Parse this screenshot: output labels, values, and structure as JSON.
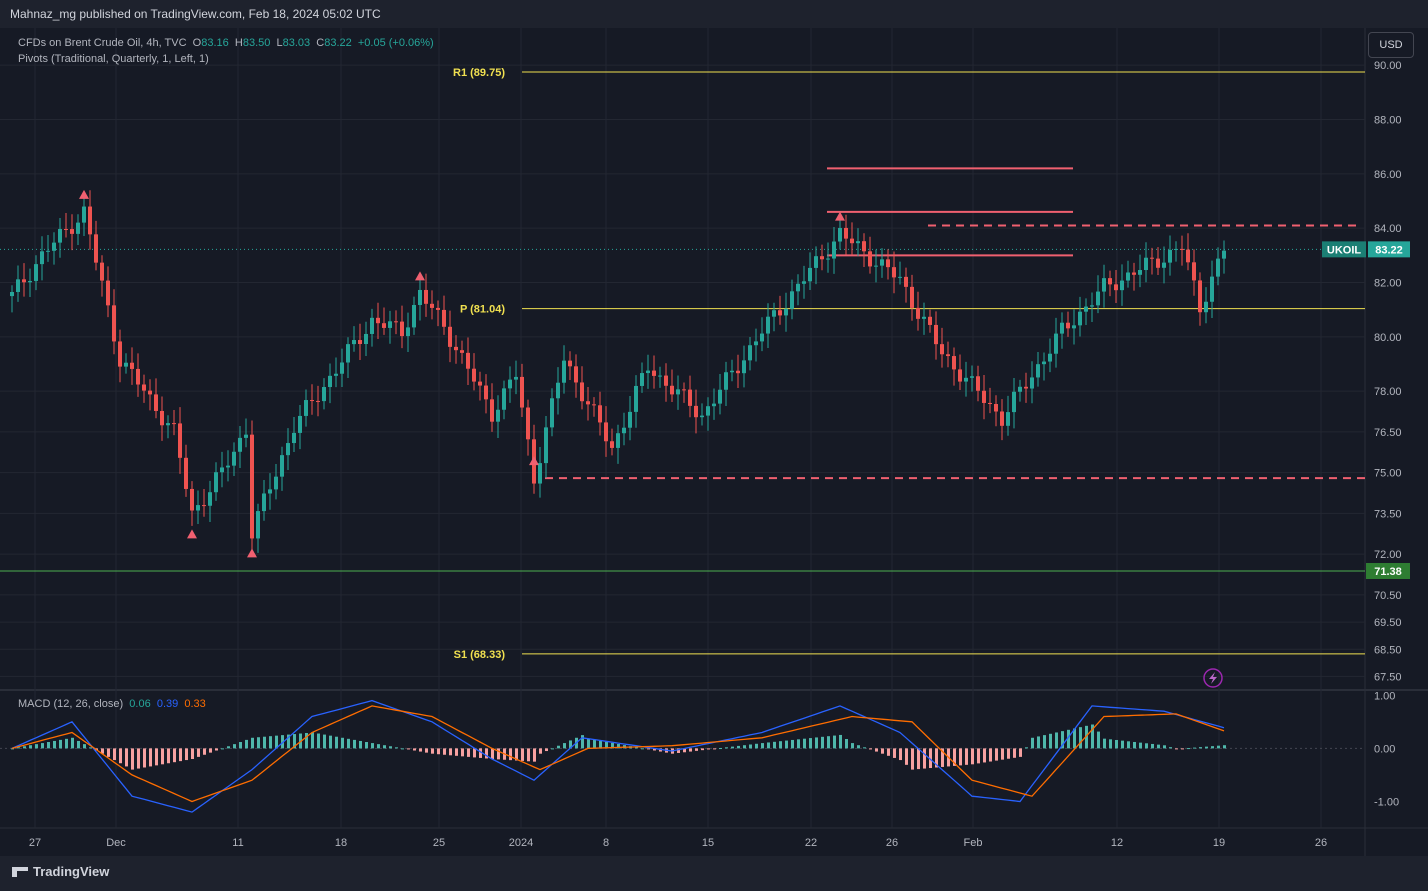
{
  "header": {
    "published": "Mahnaz_mg published on TradingView.com, Feb 18, 2024 05:02 UTC"
  },
  "legend": {
    "symbol": "CFDs on Brent Crude Oil, 4h, TVC",
    "o_label": "O",
    "o": "83.16",
    "h_label": "H",
    "h": "83.50",
    "l_label": "L",
    "l": "83.03",
    "c_label": "C",
    "c": "83.22",
    "change": "+0.05 (+0.06%)",
    "pivots": "Pivots (Traditional, Quarterly, 1, Left, 1)"
  },
  "currency_button": "USD",
  "macd_legend": {
    "name": "MACD (12, 26, close)",
    "v1": "0.06",
    "v2": "0.39",
    "v3": "0.33"
  },
  "footer": {
    "brand": "TradingView"
  },
  "colors": {
    "up": "#26a69a",
    "down": "#ef5350",
    "pivot": "#f0e050",
    "annotation": "#f06070",
    "support_line": "#4caf50"
  },
  "chart_data": {
    "type": "candlestick",
    "interval": "4h",
    "y_range": [
      67,
      91
    ],
    "y_ticks": [
      "67.50",
      "68.50",
      "69.50",
      "70.50",
      "72.00",
      "73.50",
      "75.00",
      "76.50",
      "78.00",
      "80.00",
      "82.00",
      "84.00",
      "86.00",
      "88.00",
      "90.00"
    ],
    "x_ticks": [
      "27",
      "Dec",
      "11",
      "18",
      "25",
      "2024",
      "8",
      "15",
      "22",
      "26",
      "Feb",
      "12",
      "19",
      "26"
    ],
    "last_price": {
      "label": "UKOIL",
      "value": "83.22"
    },
    "support_label": {
      "value": "71.38"
    },
    "pivots": [
      {
        "label": "R1 (89.75)",
        "value": 89.75
      },
      {
        "label": "P (81.04)",
        "value": 81.04
      },
      {
        "label": "S1 (68.33)",
        "value": 68.33
      }
    ],
    "horizontal_lines": [
      {
        "style": "solid",
        "value": 86.2
      },
      {
        "style": "solid",
        "value": 84.6
      },
      {
        "style": "solid",
        "value": 83.0
      },
      {
        "style": "dashed",
        "value": 84.1
      },
      {
        "style": "dashed",
        "value": 74.8
      }
    ],
    "price_path": [
      [
        0,
        81.5
      ],
      [
        5,
        83.0
      ],
      [
        12,
        84.6
      ],
      [
        18,
        79.2
      ],
      [
        27,
        76.5
      ],
      [
        30,
        73.5
      ],
      [
        35,
        75.0
      ],
      [
        39,
        76.6
      ],
      [
        40,
        72.8
      ],
      [
        47,
        76.7
      ],
      [
        60,
        80.6
      ],
      [
        65,
        80.2
      ],
      [
        68,
        81.6
      ],
      [
        72,
        80.4
      ],
      [
        80,
        77.2
      ],
      [
        84,
        78.6
      ],
      [
        87,
        74.8
      ],
      [
        92,
        79.2
      ],
      [
        100,
        75.9
      ],
      [
        106,
        78.9
      ],
      [
        115,
        77.1
      ],
      [
        125,
        80.2
      ],
      [
        138,
        83.8
      ],
      [
        148,
        82.1
      ],
      [
        155,
        79.4
      ],
      [
        165,
        77.0
      ],
      [
        175,
        80.2
      ],
      [
        182,
        81.8
      ],
      [
        195,
        83.3
      ],
      [
        198,
        81.1
      ],
      [
        202,
        83.22
      ]
    ],
    "bars_count": 203,
    "markers_up": [
      30,
      40
    ],
    "markers_down": [
      12,
      68,
      87,
      138
    ],
    "macd": {
      "y_range": [
        -1.5,
        1.1
      ],
      "y_ticks": [
        "1.00",
        "0.00",
        "-1.00"
      ],
      "macd_path": [
        [
          0,
          0.0
        ],
        [
          10,
          0.5
        ],
        [
          20,
          -0.9
        ],
        [
          30,
          -1.2
        ],
        [
          40,
          -0.4
        ],
        [
          50,
          0.6
        ],
        [
          60,
          0.9
        ],
        [
          70,
          0.5
        ],
        [
          80,
          -0.2
        ],
        [
          87,
          -0.6
        ],
        [
          95,
          0.2
        ],
        [
          110,
          -0.05
        ],
        [
          125,
          0.3
        ],
        [
          138,
          0.8
        ],
        [
          148,
          0.3
        ],
        [
          160,
          -0.9
        ],
        [
          168,
          -1.0
        ],
        [
          180,
          0.8
        ],
        [
          192,
          0.7
        ],
        [
          202,
          0.39
        ]
      ],
      "signal_path": [
        [
          0,
          0.0
        ],
        [
          10,
          0.3
        ],
        [
          20,
          -0.5
        ],
        [
          30,
          -1.0
        ],
        [
          40,
          -0.6
        ],
        [
          50,
          0.3
        ],
        [
          60,
          0.8
        ],
        [
          70,
          0.6
        ],
        [
          80,
          0.0
        ],
        [
          88,
          -0.4
        ],
        [
          96,
          0.0
        ],
        [
          110,
          0.05
        ],
        [
          125,
          0.2
        ],
        [
          140,
          0.6
        ],
        [
          150,
          0.5
        ],
        [
          160,
          -0.6
        ],
        [
          170,
          -0.9
        ],
        [
          182,
          0.6
        ],
        [
          194,
          0.65
        ],
        [
          202,
          0.33
        ]
      ]
    }
  }
}
